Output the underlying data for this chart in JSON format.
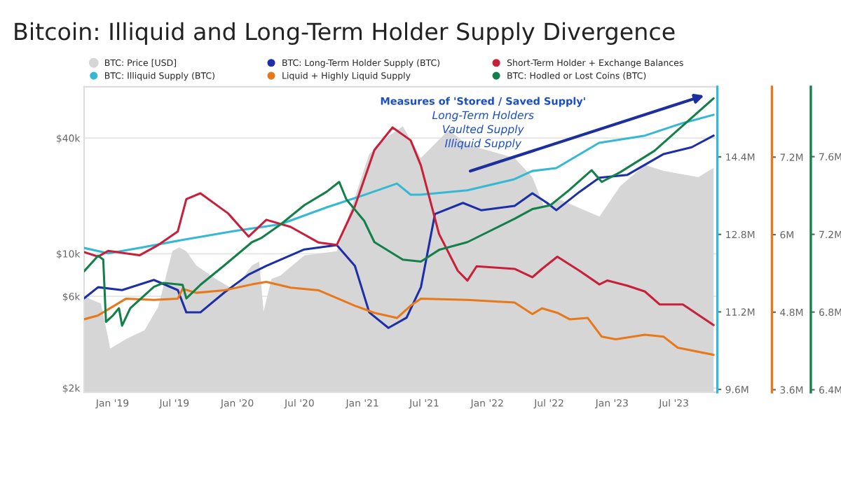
{
  "chart_data": [
    {
      "type": "line",
      "title": "Bitcoin: Illiquid and Long-Term Holder Supply Divergence",
      "annotations": [
        "Measures of 'Stored / Saved Supply'",
        "Long-Term Holders",
        "Vaulted Supply",
        "Illiquid Supply"
      ],
      "log": true,
      "grid": "y",
      "legend": "top",
      "xlim": [
        "2018-10-10",
        "2023-11-05"
      ],
      "xticks": [
        {
          "value": "2019-01-01",
          "label": "Jan '19"
        },
        {
          "value": "2019-07-01",
          "label": "Jul '19"
        },
        {
          "value": "2020-01-01",
          "label": "Jan '20"
        },
        {
          "value": "2020-07-01",
          "label": "Jul '20"
        },
        {
          "value": "2021-01-01",
          "label": "Jan '21"
        },
        {
          "value": "2021-07-01",
          "label": "Jul '21"
        },
        {
          "value": "2022-01-01",
          "label": "Jan '22"
        },
        {
          "value": "2022-07-01",
          "label": "Jul '22"
        },
        {
          "value": "2023-01-01",
          "label": "Jan '23"
        },
        {
          "value": "2023-07-01",
          "label": "Jul '23"
        }
      ],
      "ylim": [
        1900,
        74000
      ],
      "yticks": [
        {
          "value": 2000,
          "label": "$2k"
        },
        {
          "value": 6000,
          "label": "$6k"
        },
        {
          "value": 10000,
          "label": "$10k"
        },
        {
          "value": 40000,
          "label": "$40k"
        }
      ],
      "y2lim": [
        9.54,
        15.85
      ],
      "y2ticks": [
        {
          "value": 9.6,
          "label": "9.6M"
        },
        {
          "value": 11.2,
          "label": "11.2M"
        },
        {
          "value": 12.8,
          "label": "12.8M"
        },
        {
          "value": 14.4,
          "label": "14.4M"
        }
      ],
      "y3lim": [
        3.56,
        8.29
      ],
      "y3ticks": [
        {
          "value": 3.6,
          "label": "3.6M"
        },
        {
          "value": 4.8,
          "label": "4.8M"
        },
        {
          "value": 6,
          "label": "6M"
        },
        {
          "value": 7.2,
          "label": "7.2M"
        }
      ],
      "series": [
        {
          "name": "BTC: Price [USD]",
          "type": "area",
          "color": "#d6d6d6",
          "x": [
            "2018-10-10",
            "2018-11-28",
            "2018-12-20",
            "2018-12-25",
            "2019-02-10",
            "2019-04-05",
            "2019-05-15",
            "2019-06-25",
            "2019-07-15",
            "2019-08-05",
            "2019-09-03",
            "2019-10-30",
            "2019-12-22",
            "2020-02-13",
            "2020-03-05",
            "2020-03-18",
            "2020-04-10",
            "2020-05-06",
            "2020-07-15",
            "2020-10-18",
            "2021-01-21",
            "2021-03-18",
            "2021-04-29",
            "2021-06-21",
            "2021-09-10",
            "2021-11-04",
            "2022-03-22",
            "2022-05-13",
            "2022-06-15",
            "2022-08-02",
            "2022-11-25",
            "2023-01-25",
            "2023-04-07",
            "2023-06-01",
            "2023-09-10",
            "2023-10-25"
          ],
          "values": [
            6000,
            5500,
            3600,
            3200,
            3600,
            4000,
            5300,
            10300,
            10800,
            10300,
            8700,
            7400,
            6500,
            8700,
            9100,
            5000,
            7400,
            7700,
            9800,
            10300,
            33000,
            41000,
            46000,
            31500,
            44000,
            37000,
            31500,
            25000,
            17800,
            19100,
            15600,
            22500,
            29000,
            27000,
            25000,
            28000
          ]
        },
        {
          "name": "BTC: Illiquid Supply (BTC)",
          "axis": "y2",
          "color": "#35b8d4",
          "x": [
            "2018-10-10",
            "2018-12-20",
            "2019-03-21",
            "2019-08-04",
            "2019-12-22",
            "2020-05-06",
            "2020-09-19",
            "2020-12-27",
            "2021-04-12",
            "2021-05-22",
            "2021-06-20",
            "2021-11-04",
            "2022-03-21",
            "2022-05-13",
            "2022-07-22",
            "2022-11-24",
            "2023-04-07",
            "2023-07-27",
            "2023-10-25"
          ],
          "values": [
            12.52,
            12.41,
            12.52,
            12.7,
            12.87,
            13.01,
            13.36,
            13.59,
            13.85,
            13.62,
            13.62,
            13.71,
            13.94,
            14.11,
            14.17,
            14.69,
            14.84,
            15.1,
            15.27
          ]
        },
        {
          "name": "BTC: Long-Term Holder Supply (BTC)",
          "axis": "y2",
          "color": "#1c2fa8",
          "x": [
            "2018-10-10",
            "2018-11-20",
            "2019-01-29",
            "2019-05-02",
            "2019-07-11",
            "2019-08-05",
            "2019-09-15",
            "2019-11-24",
            "2020-02-03",
            "2020-03-26",
            "2020-07-15",
            "2020-10-18",
            "2020-12-10",
            "2021-01-21",
            "2021-03-18",
            "2021-05-10",
            "2021-06-21",
            "2021-08-01",
            "2021-10-22",
            "2021-12-14",
            "2022-03-22",
            "2022-05-13",
            "2022-06-25",
            "2022-07-22",
            "2022-09-28",
            "2022-11-25",
            "2023-02-15",
            "2023-06-01",
            "2023-08-22",
            "2023-10-25"
          ],
          "values": [
            11.48,
            11.71,
            11.65,
            11.86,
            11.65,
            11.19,
            11.19,
            11.6,
            11.97,
            12.15,
            12.49,
            12.58,
            12.15,
            11.19,
            10.87,
            11.08,
            11.71,
            13.22,
            13.45,
            13.3,
            13.39,
            13.65,
            13.45,
            13.3,
            13.68,
            13.97,
            14.03,
            14.46,
            14.6,
            14.84
          ]
        },
        {
          "name": "Liquid + Highly Liquid Supply",
          "axis": "y3",
          "color": "#e8781a",
          "x": [
            "2018-10-10",
            "2018-11-20",
            "2019-02-10",
            "2019-05-02",
            "2019-07-11",
            "2019-07-25",
            "2019-09-03",
            "2019-11-24",
            "2020-02-13",
            "2020-03-26",
            "2020-06-05",
            "2020-08-25",
            "2020-12-10",
            "2021-02-05",
            "2021-04-12",
            "2021-05-22",
            "2021-06-21",
            "2021-11-04",
            "2022-03-22",
            "2022-05-13",
            "2022-06-10",
            "2022-07-25",
            "2022-08-30",
            "2022-10-22",
            "2022-12-02",
            "2023-01-12",
            "2023-04-07",
            "2023-06-01",
            "2023-07-12",
            "2023-10-25"
          ],
          "values": [
            4.69,
            4.75,
            5.01,
            4.99,
            5.01,
            5.16,
            5.1,
            5.14,
            5.23,
            5.27,
            5.18,
            5.14,
            4.9,
            4.79,
            4.71,
            4.9,
            5.01,
            4.99,
            4.95,
            4.77,
            4.86,
            4.79,
            4.69,
            4.71,
            4.42,
            4.38,
            4.45,
            4.42,
            4.25,
            4.14
          ]
        },
        {
          "name": "Short-Term Holder + Exchange Balances",
          "axis": "y3",
          "color": "#c8203a",
          "x": [
            "2018-10-10",
            "2018-11-20",
            "2018-12-20",
            "2019-03-21",
            "2019-05-15",
            "2019-07-11",
            "2019-08-05",
            "2019-09-15",
            "2019-12-05",
            "2020-02-03",
            "2020-03-26",
            "2020-06-05",
            "2020-08-25",
            "2020-10-18",
            "2020-12-10",
            "2021-02-05",
            "2021-03-30",
            "2021-05-22",
            "2021-06-21",
            "2021-08-13",
            "2021-10-07",
            "2021-11-04",
            "2021-12-01",
            "2022-03-22",
            "2022-05-13",
            "2022-06-10",
            "2022-07-25",
            "2022-09-28",
            "2022-11-25",
            "2022-12-18",
            "2023-02-15",
            "2023-04-07",
            "2023-05-20",
            "2023-07-27",
            "2023-10-25"
          ],
          "values": [
            5.73,
            5.66,
            5.75,
            5.68,
            5.84,
            6.05,
            6.55,
            6.64,
            6.33,
            5.97,
            6.23,
            6.12,
            5.88,
            5.84,
            6.44,
            7.31,
            7.66,
            7.46,
            7.07,
            6.01,
            5.44,
            5.29,
            5.51,
            5.47,
            5.34,
            5.47,
            5.66,
            5.44,
            5.23,
            5.29,
            5.21,
            5.12,
            4.92,
            4.92,
            4.6
          ]
        }
      ]
    },
    {
      "type": "line",
      "tick_labels": "y",
      "xlim": [
        "2018-10-10",
        "2023-11-05"
      ],
      "ylim": [
        6.387,
        7.96
      ],
      "yticks": [
        {
          "value": 6.4,
          "label": "6.4M"
        },
        {
          "value": 6.8,
          "label": "6.8M"
        },
        {
          "value": 7.2,
          "label": "7.2M"
        },
        {
          "value": 7.6,
          "label": "7.6M"
        }
      ],
      "series": [
        {
          "name": "BTC: Hodled or Lost Coins (BTC)",
          "color": "#13804a",
          "x": [
            "2018-10-10",
            "2018-11-20",
            "2018-12-05",
            "2018-12-13",
            "2019-01-01",
            "2019-01-20",
            "2019-01-29",
            "2019-02-22",
            "2019-05-02",
            "2019-05-30",
            "2019-07-25",
            "2019-08-05",
            "2019-09-15",
            "2019-11-24",
            "2020-02-13",
            "2020-03-10",
            "2020-05-06",
            "2020-07-15",
            "2020-09-19",
            "2020-10-25",
            "2020-11-15",
            "2021-01-06",
            "2021-02-05",
            "2021-04-29",
            "2021-06-21",
            "2021-08-13",
            "2021-11-04",
            "2022-03-22",
            "2022-05-13",
            "2022-07-05",
            "2022-08-30",
            "2022-11-02",
            "2022-12-02",
            "2023-01-25",
            "2023-05-05",
            "2023-07-27",
            "2023-10-25"
          ],
          "values": [
            7.01,
            7.09,
            7.07,
            6.75,
            6.78,
            6.82,
            6.73,
            6.82,
            6.93,
            6.95,
            6.94,
            6.87,
            6.94,
            7.04,
            7.16,
            7.18,
            7.25,
            7.35,
            7.42,
            7.47,
            7.38,
            7.27,
            7.16,
            7.07,
            7.06,
            7.12,
            7.16,
            7.28,
            7.33,
            7.35,
            7.43,
            7.53,
            7.47,
            7.52,
            7.63,
            7.76,
            7.9
          ]
        }
      ]
    }
  ]
}
